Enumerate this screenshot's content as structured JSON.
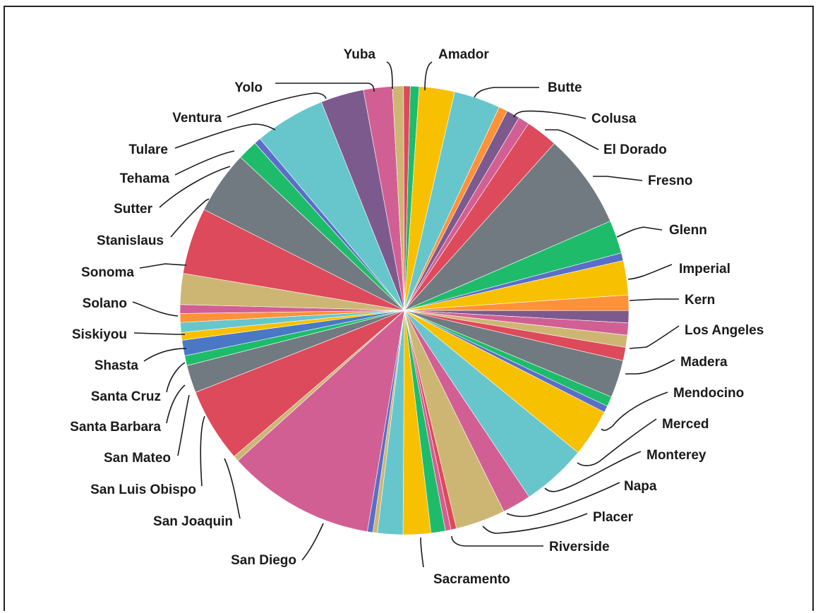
{
  "chart_data": {
    "type": "pie",
    "title": "",
    "legend": "none",
    "slices": [
      {
        "label": "Amador",
        "value": 0.8,
        "color": "#1ebc6a"
      },
      {
        "label": "Amador",
        "value": 3.2,
        "color": "#f7c000"
      },
      {
        "label": "Butte",
        "value": 4.2,
        "color": "#67c6cc"
      },
      {
        "label": "",
        "value": 0.8,
        "color": "#ff9138"
      },
      {
        "label": "Colusa",
        "value": 1.2,
        "color": "#7d5a8e"
      },
      {
        "label": "El Dorado",
        "value": 1.0,
        "color": "#d25f94"
      },
      {
        "label": "El Dorado",
        "value": 2.9,
        "color": "#dd4a5b"
      },
      {
        "label": "Fresno",
        "value": 8.6,
        "color": "#717a80"
      },
      {
        "label": "Glenn",
        "value": 3.0,
        "color": "#1ebc6a"
      },
      {
        "label": "Imperial",
        "value": 0.7,
        "color": "#5a6ec7"
      },
      {
        "label": "Imperial",
        "value": 3.1,
        "color": "#f7c000"
      },
      {
        "label": "Kern",
        "value": 1.4,
        "color": "#ff9138"
      },
      {
        "label": "Kern",
        "value": 1.1,
        "color": "#7d5a8e"
      },
      {
        "label": "Los Angeles",
        "value": 1.1,
        "color": "#d25f94"
      },
      {
        "label": "Los Angeles",
        "value": 1.1,
        "color": "#cdb674"
      },
      {
        "label": "Madera",
        "value": 1.2,
        "color": "#dd4a5b"
      },
      {
        "label": "Madera",
        "value": 3.4,
        "color": "#717a80"
      },
      {
        "label": "Mendocino",
        "value": 0.9,
        "color": "#1ebc6a"
      },
      {
        "label": "Mendocino",
        "value": 0.6,
        "color": "#5a6ec7"
      },
      {
        "label": "Mendocino",
        "value": 4.3,
        "color": "#f7c000"
      },
      {
        "label": "Merced",
        "value": 5.9,
        "color": "#67c6cc"
      },
      {
        "label": "Monterey",
        "value": 2.6,
        "color": "#d25f94"
      },
      {
        "label": "Napa",
        "value": 4.5,
        "color": "#cdb674"
      },
      {
        "label": "Napa",
        "value": 0.5,
        "color": "#dd4a5b"
      },
      {
        "label": "Placer",
        "value": 0.5,
        "color": "#d25f94"
      },
      {
        "label": "Riverside",
        "value": 1.3,
        "color": "#1ebc6a"
      },
      {
        "label": "Riverside",
        "value": 2.5,
        "color": "#f7c000"
      },
      {
        "label": "Sacramento",
        "value": 2.3,
        "color": "#67c6cc"
      },
      {
        "label": "Sacramento",
        "value": 0.4,
        "color": "#cdb674"
      },
      {
        "label": "San Diego",
        "value": 0.5,
        "color": "#5a6ec7"
      },
      {
        "label": "San Diego",
        "value": 13.4,
        "color": "#d25f94"
      },
      {
        "label": "San Joaquin",
        "value": 0.5,
        "color": "#cdb674"
      },
      {
        "label": "San Joaquin",
        "value": 6.7,
        "color": "#dd4a5b"
      },
      {
        "label": "San Luis Obispo",
        "value": 2.5,
        "color": "#717a80"
      },
      {
        "label": "San Mateo",
        "value": 0.9,
        "color": "#1ebc6a"
      },
      {
        "label": "Santa Barbara",
        "value": 1.4,
        "color": "#4a78c4"
      },
      {
        "label": "Santa Cruz",
        "value": 0.7,
        "color": "#f7c000"
      },
      {
        "label": "Santa Cruz",
        "value": 0.9,
        "color": "#67c6cc"
      },
      {
        "label": "Shasta",
        "value": 0.8,
        "color": "#ff9138"
      },
      {
        "label": "Siskiyou",
        "value": 0.8,
        "color": "#d25f94"
      },
      {
        "label": "Solano",
        "value": 2.8,
        "color": "#cdb674"
      },
      {
        "label": "Sonoma",
        "value": 6.0,
        "color": "#dd4a5b"
      },
      {
        "label": "Stanislaus",
        "value": 5.7,
        "color": "#717a80"
      },
      {
        "label": "Sutter",
        "value": 1.8,
        "color": "#1ebc6a"
      },
      {
        "label": "Tulare",
        "value": 0.6,
        "color": "#5a6ec7"
      },
      {
        "label": "Tehama",
        "value": 0.0,
        "color": "#f7c000"
      },
      {
        "label": "Ventura",
        "value": 6.4,
        "color": "#67c6cc"
      },
      {
        "label": "Yolo",
        "value": 3.9,
        "color": "#7d5a8e"
      },
      {
        "label": "Yolo",
        "value": 2.6,
        "color": "#d25f94"
      },
      {
        "label": "Yuba",
        "value": 1.0,
        "color": "#cdb674"
      },
      {
        "label": "Yuba",
        "value": 0.6,
        "color": "#dd4a5b"
      }
    ],
    "labels": [
      "Yuba",
      "Amador",
      "Butte",
      "Colusa",
      "El Dorado",
      "Fresno",
      "Glenn",
      "Imperial",
      "Kern",
      "Los Angeles",
      "Madera",
      "Mendocino",
      "Merced",
      "Monterey",
      "Napa",
      "Placer",
      "Riverside",
      "Sacramento",
      "San Diego",
      "San Joaquin",
      "San Luis Obispo",
      "San Mateo",
      "Santa Barbara",
      "Santa Cruz",
      "Shasta",
      "Siskiyou",
      "Solano",
      "Sonoma",
      "Stanislaus",
      "Sutter",
      "Tehama",
      "Tulare",
      "Ventura",
      "Yolo"
    ]
  }
}
